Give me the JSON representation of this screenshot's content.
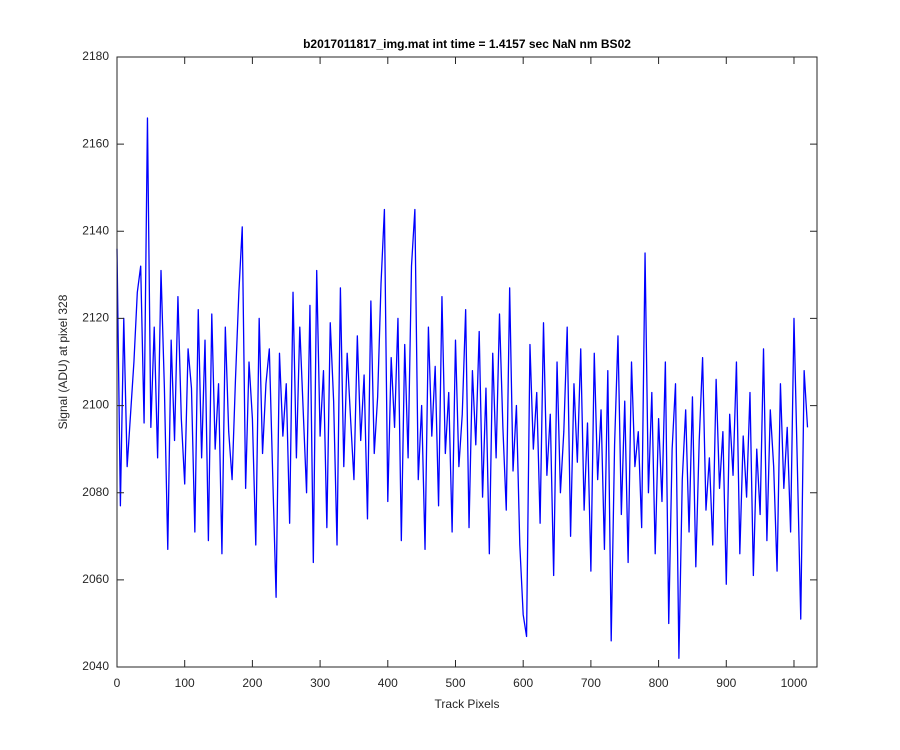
{
  "chart_data": {
    "type": "line",
    "title": "b2017011817_img.mat int time = 1.4157 sec  NaN nm BS02",
    "x_label": "Track Pixels",
    "y_label": "Signal (ADU) at pixel 328",
    "xlim": [
      0,
      1034
    ],
    "ylim": [
      2040,
      2180
    ],
    "xticks": [
      0,
      100,
      200,
      300,
      400,
      500,
      600,
      700,
      800,
      900,
      1000
    ],
    "yticks": [
      2040,
      2060,
      2080,
      2100,
      2120,
      2140,
      2160,
      2180
    ],
    "x": [
      0,
      5,
      10,
      15,
      20,
      25,
      30,
      35,
      40,
      45,
      50,
      55,
      60,
      65,
      70,
      75,
      80,
      85,
      90,
      95,
      100,
      105,
      110,
      115,
      120,
      125,
      130,
      135,
      140,
      145,
      150,
      155,
      160,
      165,
      170,
      175,
      180,
      185,
      190,
      195,
      200,
      205,
      210,
      215,
      220,
      225,
      230,
      235,
      240,
      245,
      250,
      255,
      260,
      265,
      270,
      275,
      280,
      285,
      290,
      295,
      300,
      305,
      310,
      315,
      320,
      325,
      330,
      335,
      340,
      345,
      350,
      355,
      360,
      365,
      370,
      375,
      380,
      385,
      390,
      395,
      400,
      405,
      410,
      415,
      420,
      425,
      430,
      435,
      440,
      445,
      450,
      455,
      460,
      465,
      470,
      475,
      480,
      485,
      490,
      495,
      500,
      505,
      510,
      515,
      520,
      525,
      530,
      535,
      540,
      545,
      550,
      555,
      560,
      565,
      570,
      575,
      580,
      585,
      590,
      595,
      600,
      605,
      610,
      615,
      620,
      625,
      630,
      635,
      640,
      645,
      650,
      655,
      660,
      665,
      670,
      675,
      680,
      685,
      690,
      695,
      700,
      705,
      710,
      715,
      720,
      725,
      730,
      735,
      740,
      745,
      750,
      755,
      760,
      765,
      770,
      775,
      780,
      785,
      790,
      795,
      800,
      805,
      810,
      815,
      820,
      825,
      830,
      835,
      840,
      845,
      850,
      855,
      860,
      865,
      870,
      875,
      880,
      885,
      890,
      895,
      900,
      905,
      910,
      915,
      920,
      925,
      930,
      935,
      940,
      945,
      950,
      955,
      960,
      965,
      970,
      975,
      980,
      985,
      990,
      995,
      1000,
      1005,
      1010,
      1015,
      1020
    ],
    "series": [
      {
        "color": "#0000ff",
        "values": [
          2136,
          2077,
          2120,
          2086,
          2098,
          2110,
          2126,
          2132,
          2096,
          2166,
          2095,
          2118,
          2088,
          2131,
          2104,
          2067,
          2115,
          2092,
          2125,
          2097,
          2082,
          2113,
          2104,
          2071,
          2122,
          2088,
          2115,
          2069,
          2121,
          2090,
          2105,
          2066,
          2118,
          2094,
          2083,
          2106,
          2126,
          2141,
          2081,
          2110,
          2097,
          2068,
          2120,
          2089,
          2105,
          2113,
          2084,
          2056,
          2112,
          2093,
          2105,
          2073,
          2126,
          2088,
          2118,
          2099,
          2080,
          2123,
          2064,
          2131,
          2093,
          2108,
          2072,
          2119,
          2101,
          2068,
          2127,
          2086,
          2112,
          2097,
          2083,
          2116,
          2092,
          2107,
          2074,
          2124,
          2089,
          2102,
          2128,
          2145,
          2078,
          2111,
          2095,
          2120,
          2069,
          2114,
          2088,
          2132,
          2145,
          2083,
          2100,
          2067,
          2118,
          2093,
          2109,
          2077,
          2125,
          2089,
          2103,
          2071,
          2115,
          2086,
          2098,
          2122,
          2072,
          2108,
          2091,
          2117,
          2079,
          2104,
          2066,
          2112,
          2088,
          2121,
          2095,
          2076,
          2127,
          2085,
          2100,
          2068,
          2052,
          2047,
          2114,
          2090,
          2103,
          2073,
          2119,
          2084,
          2098,
          2061,
          2110,
          2080,
          2094,
          2118,
          2070,
          2105,
          2087,
          2113,
          2076,
          2096,
          2062,
          2112,
          2083,
          2099,
          2067,
          2108,
          2046,
          2091,
          2116,
          2075,
          2101,
          2064,
          2110,
          2086,
          2094,
          2072,
          2135,
          2080,
          2103,
          2066,
          2097,
          2078,
          2110,
          2050,
          2090,
          2105,
          2042,
          2083,
          2099,
          2071,
          2102,
          2063,
          2092,
          2111,
          2076,
          2088,
          2068,
          2106,
          2081,
          2094,
          2059,
          2098,
          2084,
          2110,
          2066,
          2093,
          2079,
          2103,
          2061,
          2090,
          2075,
          2113,
          2069,
          2099,
          2086,
          2062,
          2105,
          2081,
          2095,
          2071,
          2120,
          2086,
          2051,
          2108,
          2095
        ]
      }
    ]
  }
}
